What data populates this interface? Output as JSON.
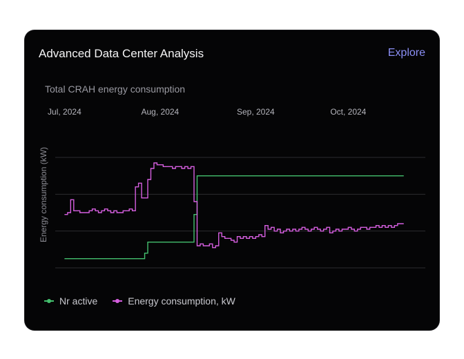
{
  "card": {
    "title": "Advanced Data Center Analysis",
    "explore_label": "Explore"
  },
  "colors": {
    "active": "#44c16f",
    "energy": "#d65fe0",
    "accent": "#8b8ff5"
  },
  "chart_data": {
    "type": "line",
    "title": "Total CRAH energy consumption",
    "ylabel": "Energy consumption (kW)",
    "xlabel": "",
    "x_start_day": 0,
    "x_end_day": 110,
    "xlim": [
      -3,
      117
    ],
    "ylim": [
      0,
      3
    ],
    "x_ticks": [
      {
        "day": 0,
        "label": "Jul, 2024"
      },
      {
        "day": 31,
        "label": "Aug, 2024"
      },
      {
        "day": 62,
        "label": "Sep, 2024"
      },
      {
        "day": 92,
        "label": "Oct, 2024"
      }
    ],
    "y_gridlines": [
      0,
      1,
      2,
      3
    ],
    "grid": true,
    "legend": "bottom-left",
    "series": [
      {
        "name": "Nr active",
        "color": "#44c16f",
        "step": true,
        "values": [
          0.25,
          0.25,
          0.25,
          0.25,
          0.25,
          0.25,
          0.25,
          0.25,
          0.25,
          0.25,
          0.25,
          0.25,
          0.25,
          0.25,
          0.25,
          0.25,
          0.25,
          0.25,
          0.25,
          0.25,
          0.25,
          0.25,
          0.25,
          0.25,
          0.25,
          0.25,
          0.4,
          0.7,
          0.7,
          0.7,
          0.7,
          0.7,
          0.7,
          0.7,
          0.7,
          0.7,
          0.7,
          0.7,
          0.7,
          0.7,
          0.7,
          0.7,
          1.45,
          2.5,
          2.5,
          2.5,
          2.5,
          2.5,
          2.5,
          2.5,
          2.5,
          2.5,
          2.5,
          2.5,
          2.5,
          2.5,
          2.5,
          2.5,
          2.5,
          2.5,
          2.5,
          2.5,
          2.5,
          2.5,
          2.5,
          2.5,
          2.5,
          2.5,
          2.5,
          2.5,
          2.5,
          2.5,
          2.5,
          2.5,
          2.5,
          2.5,
          2.5,
          2.5,
          2.5,
          2.5,
          2.5,
          2.5,
          2.5,
          2.5,
          2.5,
          2.5,
          2.5,
          2.5,
          2.5,
          2.5,
          2.5,
          2.5,
          2.5,
          2.5,
          2.5,
          2.5,
          2.5,
          2.5,
          2.5,
          2.5,
          2.5,
          2.5,
          2.5,
          2.5,
          2.5,
          2.5,
          2.5,
          2.5,
          2.5,
          2.5,
          2.5
        ]
      },
      {
        "name": "Energy consumption, kW",
        "color": "#d65fe0",
        "step": true,
        "values": [
          1.45,
          1.5,
          1.85,
          1.55,
          1.55,
          1.5,
          1.5,
          1.5,
          1.55,
          1.6,
          1.55,
          1.5,
          1.55,
          1.6,
          1.55,
          1.5,
          1.55,
          1.5,
          1.5,
          1.55,
          1.55,
          1.6,
          1.55,
          2.2,
          2.3,
          1.9,
          1.9,
          2.4,
          2.7,
          2.85,
          2.8,
          2.8,
          2.75,
          2.75,
          2.75,
          2.7,
          2.75,
          2.75,
          2.7,
          2.75,
          2.7,
          2.75,
          1.8,
          0.6,
          0.65,
          0.6,
          0.6,
          0.65,
          0.55,
          0.6,
          0.95,
          0.85,
          0.8,
          0.8,
          0.75,
          0.7,
          0.85,
          0.8,
          0.85,
          0.8,
          0.85,
          0.8,
          0.85,
          0.9,
          0.85,
          1.15,
          1.05,
          1.1,
          1.0,
          1.05,
          0.95,
          1.0,
          1.05,
          1.0,
          1.05,
          1.0,
          1.05,
          1.1,
          1.05,
          1.0,
          1.05,
          1.1,
          1.05,
          1.0,
          1.05,
          1.1,
          0.95,
          1.0,
          1.05,
          1.0,
          1.05,
          1.05,
          1.1,
          1.05,
          1.0,
          1.05,
          1.1,
          1.1,
          1.05,
          1.1,
          1.1,
          1.15,
          1.1,
          1.15,
          1.1,
          1.15,
          1.1,
          1.15,
          1.2,
          1.2,
          1.2
        ]
      }
    ]
  }
}
